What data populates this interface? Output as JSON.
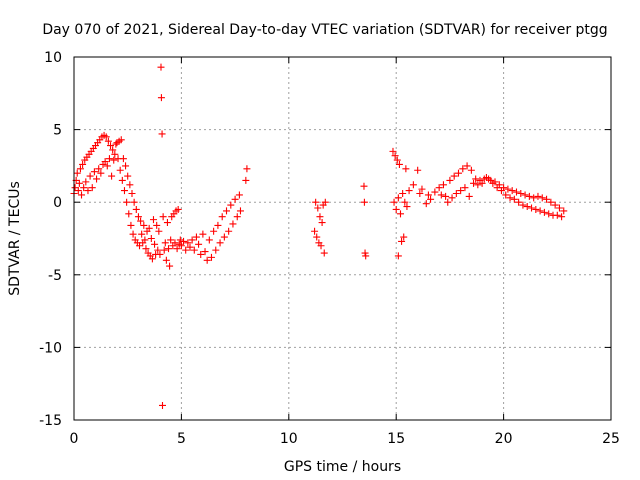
{
  "chart_data": {
    "type": "scatter",
    "title": "Day 070 of 2021, Sidereal Day-to-day VTEC variation (SDTVAR) for receiver ptgg",
    "xlabel": "GPS time / hours",
    "ylabel": "SDTVAR / TECUs",
    "xlim": [
      0,
      25
    ],
    "ylim": [
      -15,
      10
    ],
    "xticks": [
      0,
      5,
      10,
      15,
      20,
      25
    ],
    "yticks": [
      -15,
      -10,
      -5,
      0,
      5,
      10
    ],
    "xtick_labels": [
      "0",
      "5",
      "10",
      "15",
      "20",
      "25"
    ],
    "ytick_labels": [
      "-15",
      "-10",
      "-5",
      "0",
      "5",
      "10"
    ],
    "grid": true,
    "marker": "+",
    "color": "#ff0000",
    "series": [
      {
        "name": "ptgg",
        "points": [
          [
            0.0,
            0.6
          ],
          [
            0.05,
            1.0
          ],
          [
            0.1,
            1.5
          ],
          [
            0.15,
            2.0
          ],
          [
            0.2,
            0.8
          ],
          [
            0.25,
            1.3
          ],
          [
            0.3,
            2.3
          ],
          [
            0.35,
            0.5
          ],
          [
            0.4,
            2.6
          ],
          [
            0.45,
            1.0
          ],
          [
            0.5,
            2.9
          ],
          [
            0.55,
            1.4
          ],
          [
            0.6,
            3.1
          ],
          [
            0.65,
            0.8
          ],
          [
            0.7,
            3.3
          ],
          [
            0.75,
            1.8
          ],
          [
            0.8,
            3.5
          ],
          [
            0.85,
            1.0
          ],
          [
            0.9,
            3.7
          ],
          [
            0.95,
            2.1
          ],
          [
            1.0,
            3.9
          ],
          [
            1.05,
            1.6
          ],
          [
            1.1,
            4.1
          ],
          [
            1.15,
            2.3
          ],
          [
            1.2,
            4.3
          ],
          [
            1.25,
            2.0
          ],
          [
            1.3,
            4.5
          ],
          [
            1.35,
            2.6
          ],
          [
            1.4,
            4.6
          ],
          [
            1.45,
            2.8
          ],
          [
            1.5,
            4.5
          ],
          [
            1.55,
            2.5
          ],
          [
            1.6,
            4.2
          ],
          [
            1.65,
            3.0
          ],
          [
            1.7,
            3.9
          ],
          [
            1.75,
            1.8
          ],
          [
            1.8,
            3.6
          ],
          [
            1.85,
            2.9
          ],
          [
            1.9,
            3.3
          ],
          [
            1.95,
            4.0
          ],
          [
            2.0,
            4.1
          ],
          [
            2.05,
            3.0
          ],
          [
            2.1,
            4.2
          ],
          [
            2.15,
            2.2
          ],
          [
            2.2,
            4.3
          ],
          [
            2.25,
            1.5
          ],
          [
            2.3,
            3.0
          ],
          [
            2.35,
            0.8
          ],
          [
            2.4,
            2.5
          ],
          [
            2.45,
            0.0
          ],
          [
            2.5,
            1.8
          ],
          [
            2.55,
            -0.8
          ],
          [
            2.6,
            1.2
          ],
          [
            2.65,
            -1.6
          ],
          [
            2.7,
            0.6
          ],
          [
            2.75,
            -2.2
          ],
          [
            2.8,
            0.0
          ],
          [
            2.85,
            -2.6
          ],
          [
            2.9,
            -0.5
          ],
          [
            2.95,
            -2.8
          ],
          [
            3.0,
            -1.0
          ],
          [
            3.05,
            -3.0
          ],
          [
            3.1,
            -1.3
          ],
          [
            3.15,
            -2.2
          ],
          [
            3.2,
            -2.8
          ],
          [
            3.25,
            -1.6
          ],
          [
            3.3,
            -2.6
          ],
          [
            3.35,
            -3.2
          ],
          [
            3.4,
            -2.0
          ],
          [
            3.45,
            -3.5
          ],
          [
            3.5,
            -1.8
          ],
          [
            3.55,
            -3.7
          ],
          [
            3.6,
            -2.5
          ],
          [
            3.65,
            -3.9
          ],
          [
            3.7,
            -1.2
          ],
          [
            3.75,
            -2.9
          ],
          [
            3.8,
            -3.6
          ],
          [
            3.85,
            -1.6
          ],
          [
            3.9,
            -3.3
          ],
          [
            3.95,
            -2.0
          ],
          [
            4.0,
            -3.6
          ],
          [
            4.05,
            9.3
          ],
          [
            4.07,
            7.2
          ],
          [
            4.1,
            4.7
          ],
          [
            4.12,
            -14.0
          ],
          [
            4.15,
            -1.0
          ],
          [
            4.2,
            -3.3
          ],
          [
            4.25,
            -2.8
          ],
          [
            4.3,
            -4.0
          ],
          [
            4.35,
            -1.4
          ],
          [
            4.4,
            -3.2
          ],
          [
            4.45,
            -4.4
          ],
          [
            4.5,
            -2.6
          ],
          [
            4.55,
            -1.0
          ],
          [
            4.6,
            -3.0
          ],
          [
            4.65,
            -0.8
          ],
          [
            4.7,
            -2.8
          ],
          [
            4.75,
            -0.6
          ],
          [
            4.8,
            -3.2
          ],
          [
            4.85,
            -0.5
          ],
          [
            4.9,
            -2.9
          ],
          [
            4.95,
            -2.6
          ],
          [
            5.0,
            -3.0
          ],
          [
            5.1,
            -2.7
          ],
          [
            5.2,
            -3.3
          ],
          [
            5.3,
            -2.8
          ],
          [
            5.4,
            -3.1
          ],
          [
            5.5,
            -2.6
          ],
          [
            5.6,
            -3.3
          ],
          [
            5.7,
            -2.4
          ],
          [
            5.8,
            -2.9
          ],
          [
            5.9,
            -3.6
          ],
          [
            6.0,
            -2.2
          ],
          [
            6.1,
            -3.4
          ],
          [
            6.2,
            -4.0
          ],
          [
            6.3,
            -2.6
          ],
          [
            6.4,
            -3.8
          ],
          [
            6.5,
            -2.0
          ],
          [
            6.6,
            -3.3
          ],
          [
            6.7,
            -1.6
          ],
          [
            6.8,
            -2.8
          ],
          [
            6.9,
            -1.0
          ],
          [
            7.0,
            -2.4
          ],
          [
            7.1,
            -0.6
          ],
          [
            7.2,
            -2.0
          ],
          [
            7.3,
            -0.2
          ],
          [
            7.4,
            -1.5
          ],
          [
            7.5,
            0.2
          ],
          [
            7.6,
            -1.0
          ],
          [
            7.7,
            0.5
          ],
          [
            7.75,
            -0.6
          ],
          [
            8.0,
            1.5
          ],
          [
            8.05,
            2.3
          ],
          [
            11.2,
            -2.0
          ],
          [
            11.25,
            0.0
          ],
          [
            11.3,
            -2.4
          ],
          [
            11.35,
            -0.4
          ],
          [
            11.4,
            -2.8
          ],
          [
            11.45,
            -1.0
          ],
          [
            11.5,
            -3.0
          ],
          [
            11.55,
            -1.4
          ],
          [
            11.6,
            -0.2
          ],
          [
            11.65,
            -3.5
          ],
          [
            11.7,
            0.0
          ],
          [
            13.5,
            1.1
          ],
          [
            13.52,
            0.0
          ],
          [
            13.55,
            -3.5
          ],
          [
            13.58,
            -3.7
          ],
          [
            14.85,
            3.5
          ],
          [
            14.9,
            0.0
          ],
          [
            14.95,
            3.2
          ],
          [
            15.0,
            -0.5
          ],
          [
            15.05,
            2.9
          ],
          [
            15.1,
            0.3
          ],
          [
            15.15,
            2.6
          ],
          [
            15.2,
            -0.8
          ],
          [
            15.25,
            -2.7
          ],
          [
            15.3,
            0.6
          ],
          [
            15.35,
            -2.4
          ],
          [
            15.1,
            -3.7
          ],
          [
            15.4,
            0.0
          ],
          [
            15.45,
            2.3
          ],
          [
            15.5,
            -0.3
          ],
          [
            15.6,
            0.8
          ],
          [
            15.8,
            1.2
          ],
          [
            16.0,
            2.2
          ],
          [
            16.1,
            0.6
          ],
          [
            16.2,
            0.9
          ],
          [
            16.4,
            -0.1
          ],
          [
            16.5,
            0.5
          ],
          [
            16.6,
            0.2
          ],
          [
            16.8,
            0.7
          ],
          [
            17.0,
            1.0
          ],
          [
            17.1,
            0.5
          ],
          [
            17.2,
            1.2
          ],
          [
            17.3,
            0.4
          ],
          [
            17.4,
            0.0
          ],
          [
            17.5,
            1.5
          ],
          [
            17.6,
            0.3
          ],
          [
            17.7,
            1.8
          ],
          [
            17.8,
            0.6
          ],
          [
            17.9,
            2.0
          ],
          [
            18.0,
            0.8
          ],
          [
            18.1,
            2.3
          ],
          [
            18.2,
            1.0
          ],
          [
            18.3,
            2.5
          ],
          [
            18.4,
            0.4
          ],
          [
            18.5,
            2.2
          ],
          [
            18.6,
            1.3
          ],
          [
            18.7,
            1.6
          ],
          [
            18.8,
            1.2
          ],
          [
            18.9,
            1.5
          ],
          [
            19.0,
            1.3
          ],
          [
            19.1,
            1.6
          ],
          [
            19.2,
            1.7
          ],
          [
            19.3,
            1.6
          ],
          [
            19.4,
            1.5
          ],
          [
            19.5,
            1.3
          ],
          [
            19.6,
            1.4
          ],
          [
            19.7,
            1.0
          ],
          [
            19.8,
            1.2
          ],
          [
            19.9,
            0.8
          ],
          [
            20.0,
            1.0
          ],
          [
            20.1,
            0.5
          ],
          [
            20.2,
            0.9
          ],
          [
            20.3,
            0.3
          ],
          [
            20.4,
            0.8
          ],
          [
            20.5,
            0.2
          ],
          [
            20.6,
            0.7
          ],
          [
            20.7,
            0.0
          ],
          [
            20.8,
            0.6
          ],
          [
            20.9,
            -0.2
          ],
          [
            21.0,
            0.5
          ],
          [
            21.1,
            -0.3
          ],
          [
            21.2,
            0.4
          ],
          [
            21.3,
            -0.4
          ],
          [
            21.4,
            0.3
          ],
          [
            21.5,
            -0.5
          ],
          [
            21.6,
            0.4
          ],
          [
            21.7,
            -0.6
          ],
          [
            21.8,
            0.3
          ],
          [
            21.9,
            -0.7
          ],
          [
            22.0,
            0.2
          ],
          [
            22.1,
            -0.8
          ],
          [
            22.2,
            0.0
          ],
          [
            22.3,
            -0.9
          ],
          [
            22.4,
            -0.2
          ],
          [
            22.5,
            -0.9
          ],
          [
            22.6,
            -0.4
          ],
          [
            22.7,
            -1.0
          ],
          [
            22.8,
            -0.6
          ]
        ]
      }
    ]
  }
}
